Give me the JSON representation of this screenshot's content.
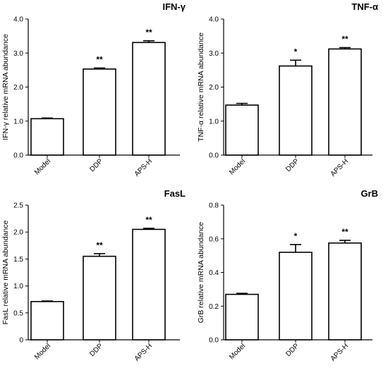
{
  "chart_data": [
    {
      "type": "bar",
      "title": "IFN-γ",
      "ylabel": "IFN-γ  relative mRNA abundance",
      "categories": [
        "Model",
        "DDP",
        "APS-H"
      ],
      "values": [
        1.07,
        2.53,
        3.31
      ],
      "errors": [
        0.02,
        0.03,
        0.05
      ],
      "significance": [
        "",
        "**",
        "**"
      ],
      "ylim": [
        0,
        4
      ],
      "yticks": [
        "0.0",
        "1.0",
        "2.0",
        "3.0",
        "4.0"
      ]
    },
    {
      "type": "bar",
      "title": "TNF-α",
      "ylabel": "TNF-α  relative mRNA abundance",
      "categories": [
        "Model",
        "DDP",
        "APS-H"
      ],
      "values": [
        1.47,
        2.62,
        3.12
      ],
      "errors": [
        0.05,
        0.17,
        0.04
      ],
      "significance": [
        "",
        "*",
        "**"
      ],
      "ylim": [
        0,
        4
      ],
      "yticks": [
        "0.0",
        "1.0",
        "2.0",
        "3.0",
        "4.0"
      ]
    },
    {
      "type": "bar",
      "title": "FasL",
      "ylabel": "FasL  relative mRNA abundance",
      "categories": [
        "Model",
        "DDP",
        "APS-H"
      ],
      "values": [
        0.71,
        1.55,
        2.05
      ],
      "errors": [
        0.01,
        0.05,
        0.02
      ],
      "significance": [
        "",
        "**",
        "**"
      ],
      "ylim": [
        0,
        2.5
      ],
      "yticks": [
        "0",
        "0.5",
        "1.0",
        "1.5",
        "2.0",
        "2.5"
      ]
    },
    {
      "type": "bar",
      "title": "GrB",
      "ylabel": "GrB relative mRNA abundance",
      "categories": [
        "Model",
        "DDP",
        "APS-H"
      ],
      "values": [
        0.27,
        0.52,
        0.575
      ],
      "errors": [
        0.006,
        0.046,
        0.016
      ],
      "significance": [
        "",
        "*",
        "**"
      ],
      "ylim": [
        0,
        0.8
      ],
      "yticks": [
        "0.0",
        "0.2",
        "0.4",
        "0.6",
        "0.8"
      ]
    }
  ]
}
